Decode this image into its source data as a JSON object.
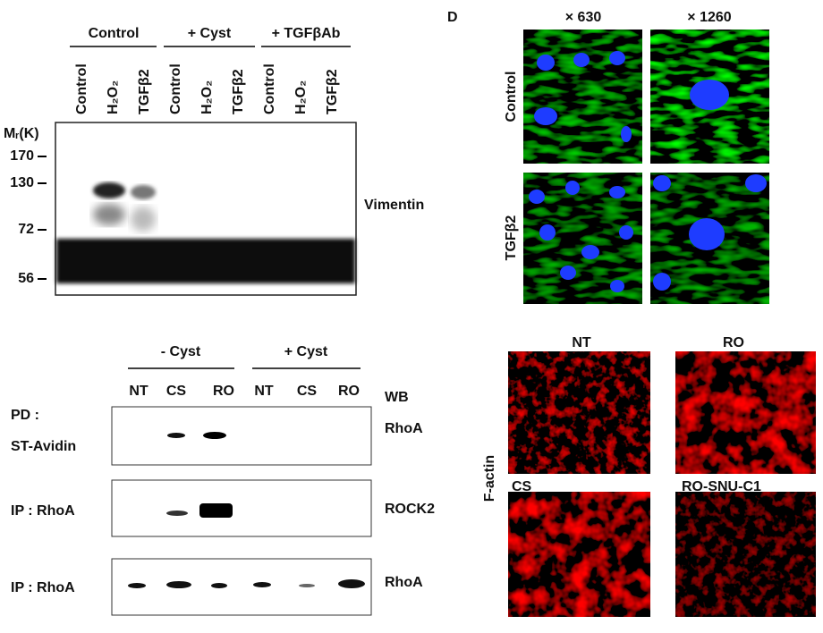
{
  "panel_top_left": {
    "groups": [
      "Control",
      "+ Cyst",
      "+ TGFβAb"
    ],
    "lanes": [
      "Control",
      "H₂O₂",
      "TGFβ2",
      "Control",
      "H₂O₂",
      "TGFβ2",
      "Control",
      "H₂O₂",
      "TGFβ2"
    ],
    "mw_label": "Mᵣ(K)",
    "markers": [
      "170",
      "130",
      "72",
      "56"
    ],
    "band_label": "Vimentin"
  },
  "panel_top_right": {
    "letter": "D",
    "magnifications": [
      "× 630",
      "× 1260"
    ],
    "rows": [
      "Control",
      "TGFβ2"
    ]
  },
  "panel_bottom_left": {
    "groups": [
      "- Cyst",
      "+ Cyst"
    ],
    "lanes": [
      "NT",
      "CS",
      "RO",
      "NT",
      "CS",
      "RO"
    ],
    "wb": "WB",
    "rows": [
      {
        "left": [
          "PD :",
          "ST-Avidin"
        ],
        "right": "RhoA"
      },
      {
        "left": [
          "IP : RhoA"
        ],
        "right": "ROCK2"
      },
      {
        "left": [
          "IP : RhoA"
        ],
        "right": "RhoA"
      }
    ]
  },
  "panel_bottom_right": {
    "stain": "F-actin",
    "images": [
      "NT",
      "RO",
      "CS",
      "RO-SNU-C1"
    ]
  }
}
